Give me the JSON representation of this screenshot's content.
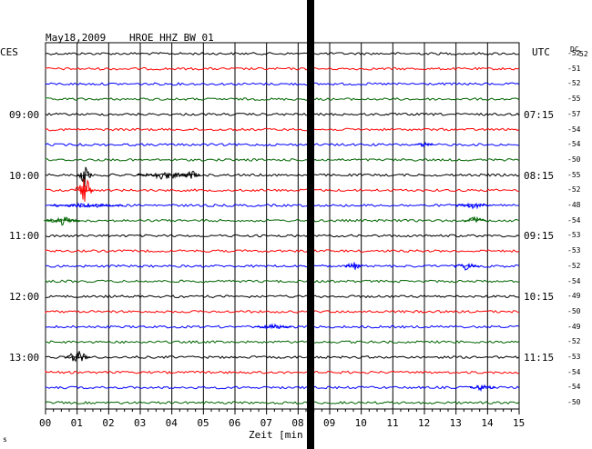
{
  "header": {
    "date": "May18,2009",
    "station": "HROE HHZ BW 01"
  },
  "left_label": "CES",
  "right_label": "UTC",
  "dc_label": "DC",
  "dc_sub": "52",
  "time_labels_left": [
    "09:00",
    "10:00",
    "11:00",
    "12:00",
    "13:00"
  ],
  "time_labels_right": [
    "07:15",
    "08:15",
    "09:15",
    "10:15",
    "11:15"
  ],
  "dc_offsets": [
    "-52",
    "-51",
    "-52",
    "-55",
    "-57",
    "-54",
    "-54",
    "-50",
    "-55",
    "-52",
    "-48",
    "-54",
    "-53",
    "-53",
    "-52",
    "-54",
    "-49",
    "-50",
    "-49",
    "-52",
    "-53",
    "-54",
    "-54",
    "-50"
  ],
  "x_ticks": [
    "00",
    "01",
    "02",
    "03",
    "04",
    "05",
    "06",
    "07",
    "08",
    "09",
    "10",
    "11",
    "12",
    "13",
    "14",
    "15"
  ],
  "x_label": "Zeit [min",
  "trace_colors": [
    "#000000",
    "#ff0000",
    "#0000ff",
    "#006400"
  ],
  "corner_mark": "s"
}
